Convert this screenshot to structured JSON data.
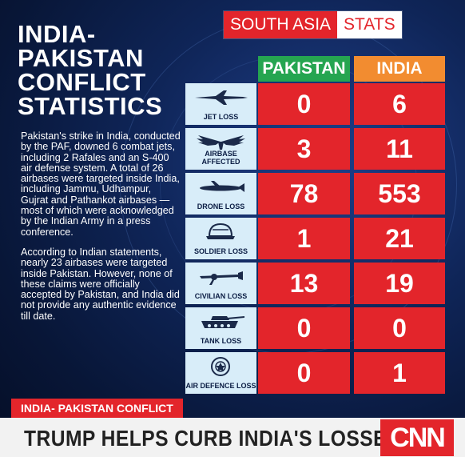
{
  "title_lines": [
    "INDIA-",
    "PAKISTAN",
    "CONFLICT",
    "STATISTICS"
  ],
  "paragraphs": [
    "Pakistan's strike in India, conducted by the PAF, downed 6 combat jets, including 2 Rafales and an S-400 air defense system. A total of 26 airbases were targeted inside India, including Jammu, Udhampur, Gujrat and Pathankot airbases — most of which were acknowledged by the Indian Army in a press conference.",
    "According to Indian statements, nearly 23 airbases were targeted inside Pakistan. However, none of these claims were officially accepted by Pakistan, and India did not provide any authentic evidence till date."
  ],
  "badge": {
    "part1": "SOUTH ASIA",
    "part2": "STATS"
  },
  "columns": {
    "pakistan": "PAKISTAN",
    "india": "INDIA"
  },
  "rows": [
    {
      "label": "JET LOSS",
      "icon": "jet-icon",
      "pakistan": "0",
      "india": "6"
    },
    {
      "label": "AIRBASE AFFECTED",
      "icon": "wings-icon",
      "pakistan": "3",
      "india": "11"
    },
    {
      "label": "DRONE LOSS",
      "icon": "drone-icon",
      "pakistan": "78",
      "india": "553"
    },
    {
      "label": "SOLDIER LOSS",
      "icon": "helmet-icon",
      "pakistan": "1",
      "india": "21"
    },
    {
      "label": "CIVILIAN LOSS",
      "icon": "civilian-icon",
      "pakistan": "13",
      "india": "19"
    },
    {
      "label": "TANK LOSS",
      "icon": "tank-icon",
      "pakistan": "0",
      "india": "0"
    },
    {
      "label": "AIR DEFENCE LOSS",
      "icon": "air-defence-icon",
      "pakistan": "0",
      "india": "1"
    }
  ],
  "banner": {
    "tag": "INDIA- PAKISTAN CONFLICT",
    "headline": "TRUMP HELPS CURB INDIA'S LOSSES",
    "logo": "CNN"
  },
  "colors": {
    "red": "#e3252b",
    "green": "#25a550",
    "orange": "#f28c30",
    "navy": "#0a1a3d",
    "label_bg": "#d8edf9"
  }
}
